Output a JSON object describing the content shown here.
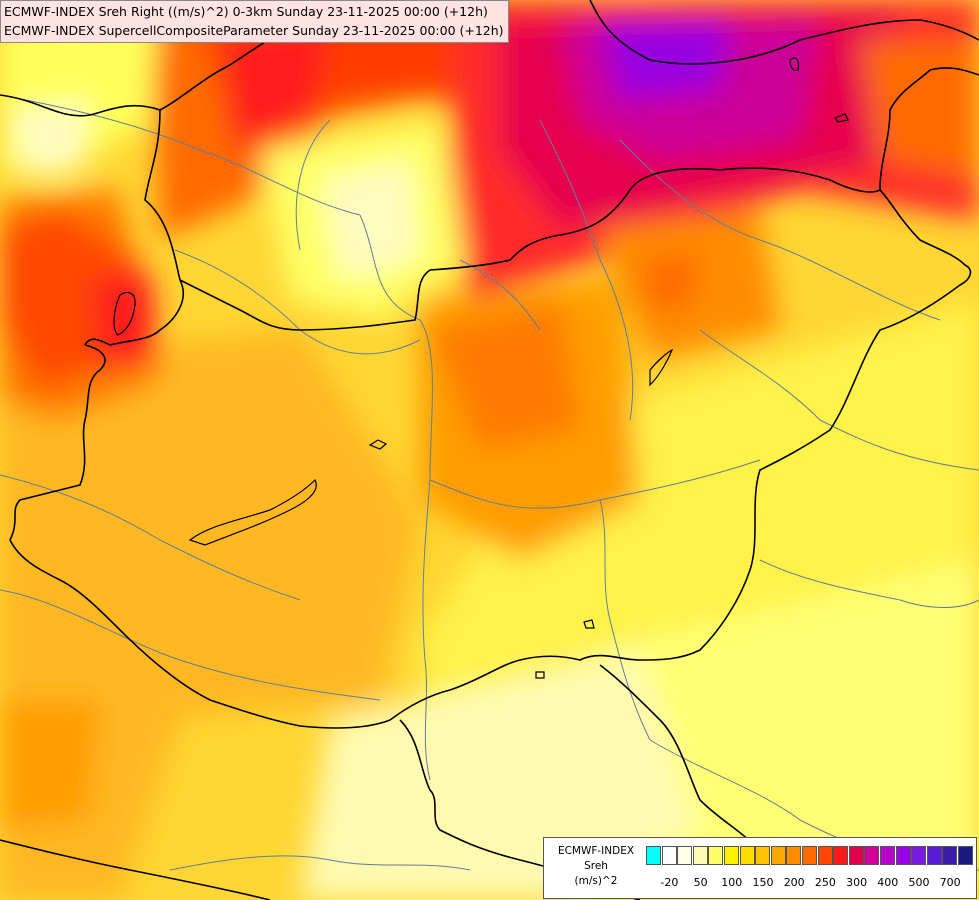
{
  "header": {
    "line1": "ECMWF-INDEX Sreh Right ((m/s)^2) 0-3km Sunday 23-11-2025 00:00 (+12h)",
    "line2": "ECMWF-INDEX SupercellCompositeParameter Sunday 23-11-2025 00:00 (+12h)"
  },
  "legend": {
    "title_model": "ECMWF-INDEX",
    "title_var": "Sreh",
    "title_unit": "(m/s)^2",
    "colors": [
      "#00ffff",
      "#ffffff",
      "#ffffe6",
      "#fffbb0",
      "#ffff66",
      "#fff200",
      "#ffdc00",
      "#ffc300",
      "#ffa800",
      "#ff8c00",
      "#ff6a00",
      "#ff4500",
      "#ff1a1a",
      "#e0004d",
      "#d4009c",
      "#b800cc",
      "#9900e6",
      "#7a1ae0",
      "#5a1ad4",
      "#3d1aa8",
      "#1a1a80"
    ],
    "labels": [
      "-20",
      "50",
      "100",
      "150",
      "200",
      "250",
      "300",
      "400",
      "500",
      "700"
    ]
  }
}
